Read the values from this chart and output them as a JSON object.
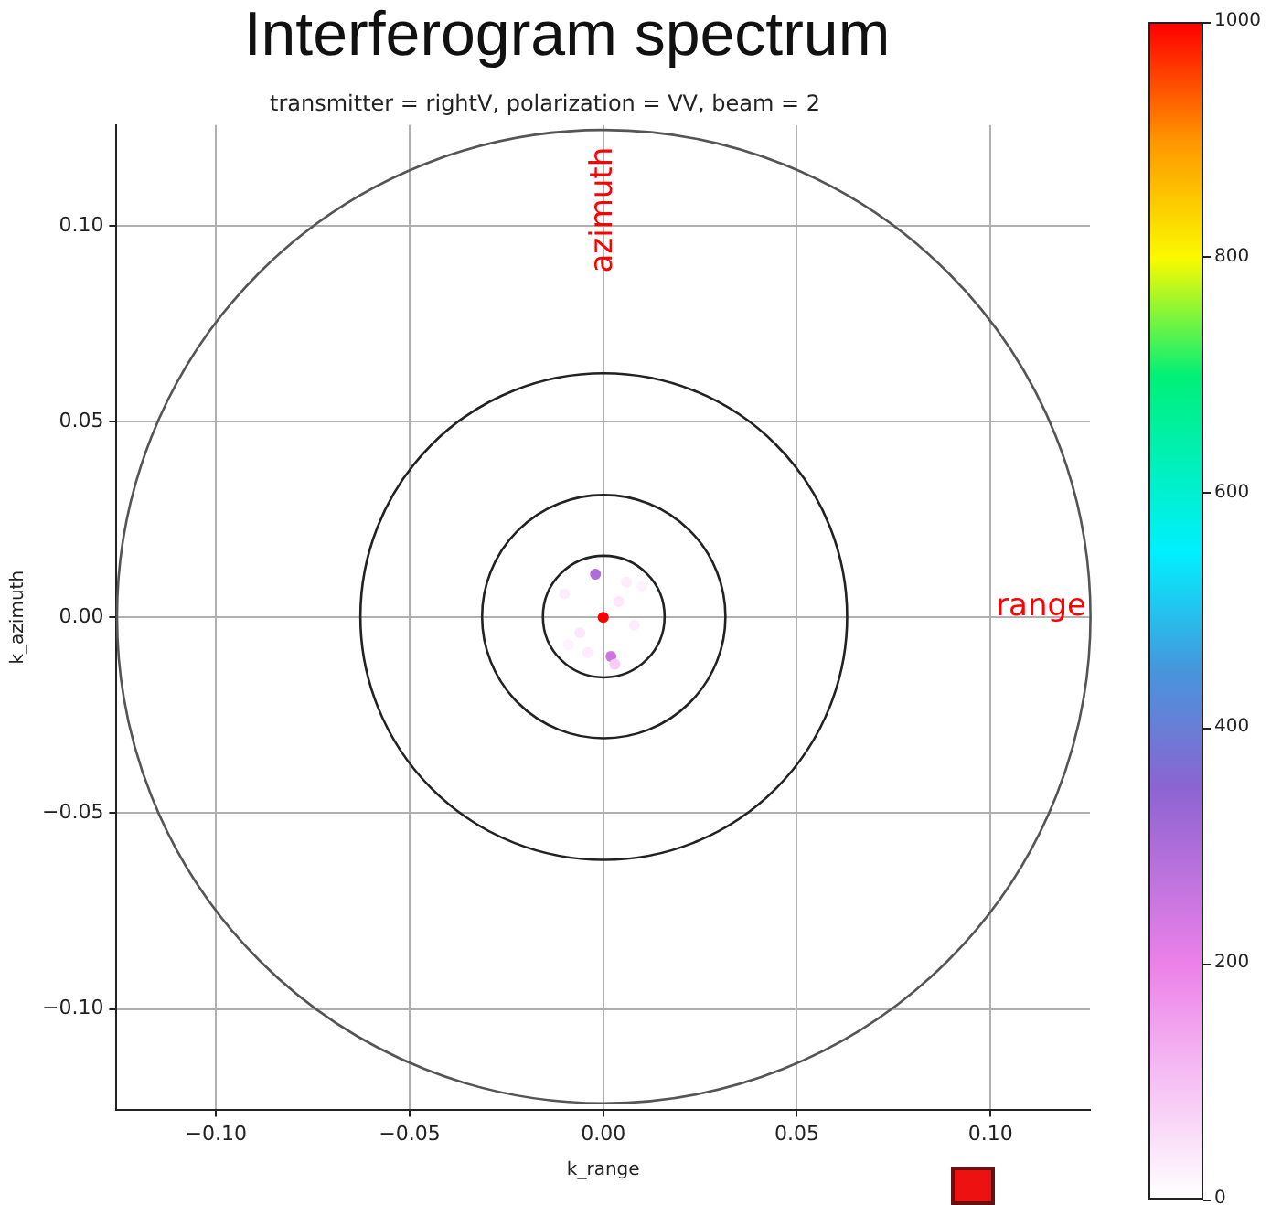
{
  "chart_data": {
    "type": "scatter",
    "title": "Interferogram spectrum",
    "subtitle": "transmitter = rightV, polarization = VV, beam = 2",
    "xlabel": "k_range",
    "ylabel": "k_azimuth",
    "xlim": [
      -0.1257,
      0.1257
    ],
    "ylim": [
      -0.1257,
      0.1257
    ],
    "xticks": [
      {
        "value": -0.1,
        "label": "−0.10"
      },
      {
        "value": -0.05,
        "label": "−0.05"
      },
      {
        "value": 0,
        "label": "0.00"
      },
      {
        "value": 0.05,
        "label": "0.05"
      },
      {
        "value": 0.1,
        "label": "0.10"
      }
    ],
    "yticks": [
      {
        "value": -0.1,
        "label": "−0.10"
      },
      {
        "value": -0.05,
        "label": "−0.05"
      },
      {
        "value": 0,
        "label": "0.00"
      },
      {
        "value": 0.05,
        "label": "0.05"
      },
      {
        "value": 0.1,
        "label": "0.10"
      }
    ],
    "clim": [
      0,
      1000
    ],
    "cticks": [
      0,
      200,
      400,
      600,
      800,
      1000
    ],
    "grid": true,
    "legend": false,
    "marker": "circle",
    "annotations": [
      "azimuth",
      "range"
    ],
    "series": [
      {
        "x": [
          0,
          -0.002,
          0.002,
          0.004,
          -0.006,
          0.008,
          -0.01,
          0.006,
          -0.004,
          0.01,
          -0.009,
          0.003
        ],
        "values": [
          0,
          0.011,
          -0.01,
          0.004,
          -0.004,
          -0.002,
          0.006,
          0.009,
          -0.009,
          0.008,
          -0.007,
          -0.012
        ],
        "cvalues": [
          1000,
          300,
          250,
          40,
          40,
          30,
          30,
          30,
          30,
          20,
          20,
          80
        ]
      }
    ]
  }
}
